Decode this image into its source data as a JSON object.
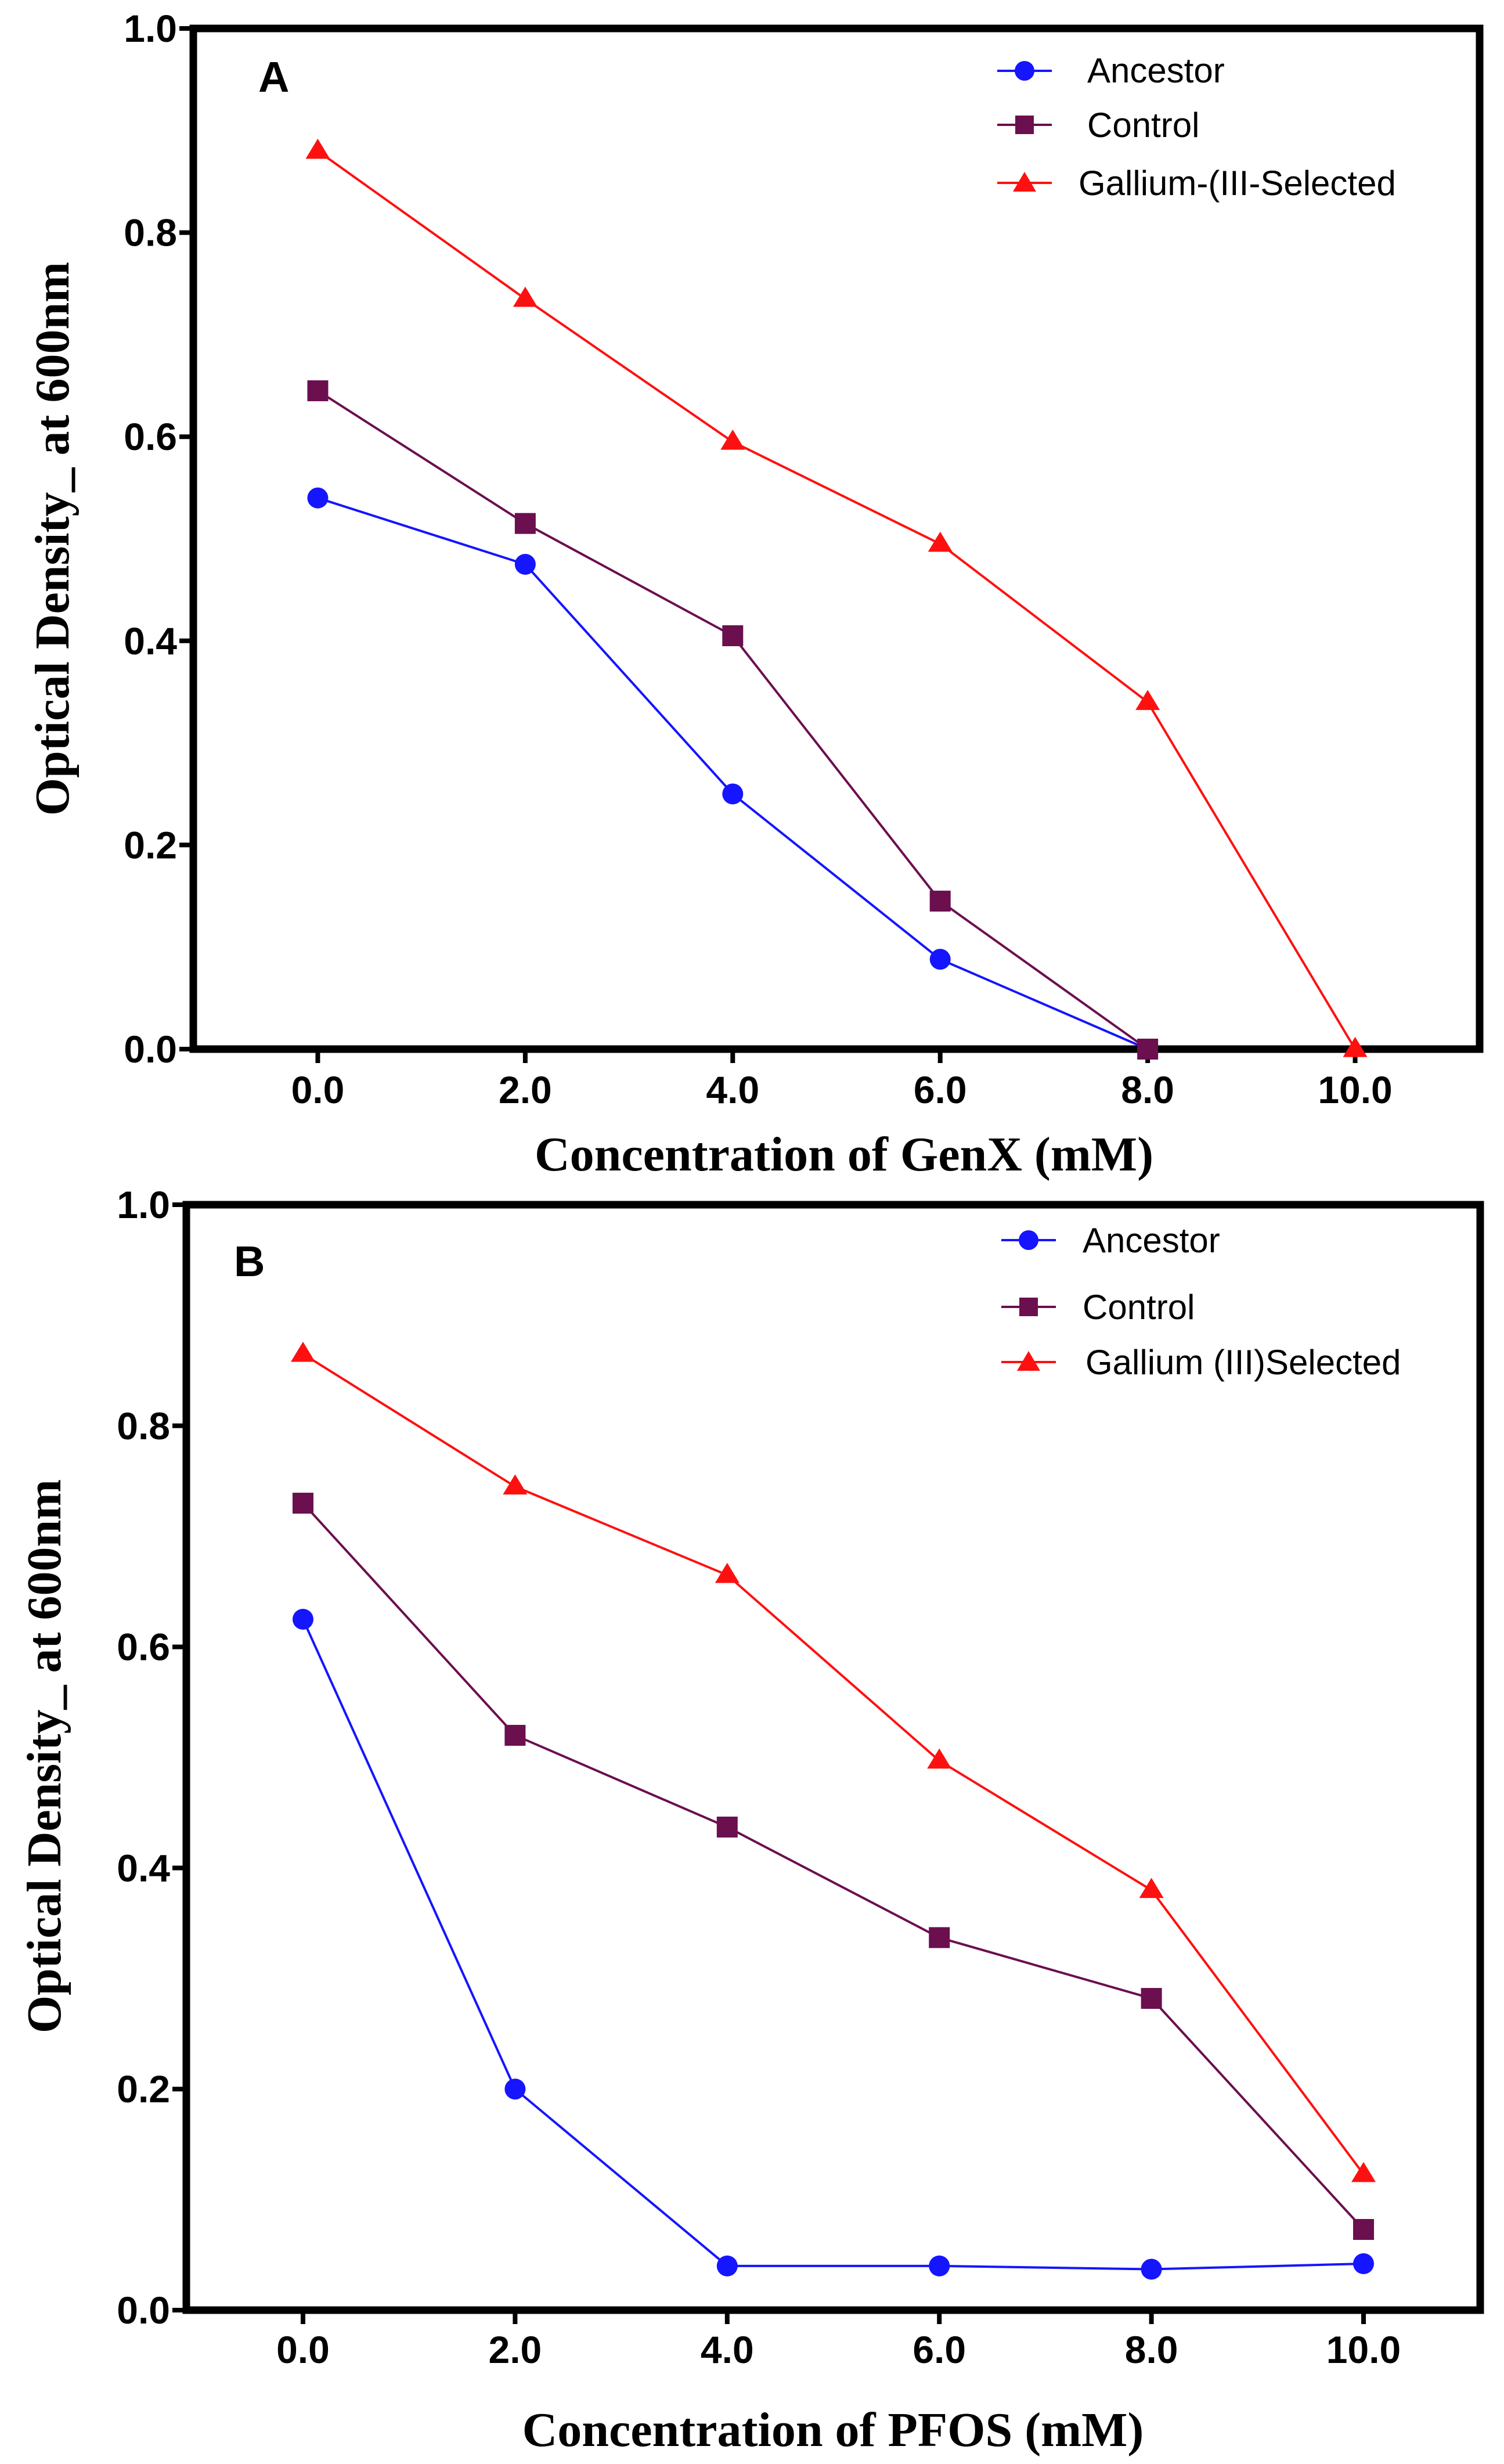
{
  "chart_data": [
    {
      "type": "line",
      "panel_label": "A",
      "title": "",
      "xlabel": "Concentration of GenX (mM)",
      "ylabel": "Optical Density_ at 600nm",
      "x": [
        0,
        2,
        4,
        6,
        8,
        10
      ],
      "x_tick_labels": [
        "0.0",
        "2.0",
        "4.0",
        "6.0",
        "8.0",
        "10.0"
      ],
      "xlim": [
        -1.2,
        11.2
      ],
      "ylim": [
        0,
        1.0
      ],
      "y_ticks": [
        0.0,
        0.2,
        0.4,
        0.6,
        0.8,
        1.0
      ],
      "y_tick_labels": [
        "0.0",
        "0.2",
        "0.4",
        "0.6",
        "0.8",
        "1.0"
      ],
      "grid": false,
      "legend_position": "top-right",
      "series": [
        {
          "name": "Ancestor",
          "color": "#1515ff",
          "marker": "circle",
          "x": [
            0,
            2,
            4,
            6,
            8
          ],
          "values": [
            0.54,
            0.475,
            0.25,
            0.088,
            0.0
          ]
        },
        {
          "name": "Control",
          "color": "#6b0f4f",
          "marker": "square",
          "x": [
            0,
            2,
            4,
            6,
            8
          ],
          "values": [
            0.645,
            0.515,
            0.405,
            0.145,
            0.0
          ]
        },
        {
          "name": "Gallium-(III-Selected",
          "color": "#ff1010",
          "marker": "triangle",
          "x": [
            0,
            2,
            4,
            6,
            8,
            10
          ],
          "values": [
            0.88,
            0.735,
            0.595,
            0.495,
            0.34,
            0.0
          ]
        }
      ]
    },
    {
      "type": "line",
      "panel_label": "B",
      "title": "",
      "xlabel": "Concentration of PFOS (mM)",
      "ylabel": "Optical Density_ at 600nm",
      "x": [
        0,
        2,
        4,
        6,
        8,
        10
      ],
      "x_tick_labels": [
        "0.0",
        "2.0",
        "4.0",
        "6.0",
        "8.0",
        "10.0"
      ],
      "xlim": [
        -1.1,
        11.1
      ],
      "ylim": [
        0,
        1.0
      ],
      "y_ticks": [
        0.0,
        0.2,
        0.4,
        0.6,
        0.8,
        1.0
      ],
      "y_tick_labels": [
        "0.0",
        "0.2",
        "0.4",
        "0.6",
        "0.8",
        "1.0"
      ],
      "grid": false,
      "legend_position": "top-right",
      "series": [
        {
          "name": "Ancestor",
          "color": "#1515ff",
          "marker": "circle",
          "x": [
            0,
            2,
            4,
            6,
            8,
            10
          ],
          "values": [
            0.625,
            0.2,
            0.04,
            0.04,
            0.037,
            0.042
          ]
        },
        {
          "name": "Control",
          "color": "#6b0f4f",
          "marker": "square",
          "x": [
            0,
            2,
            4,
            6,
            8,
            10
          ],
          "values": [
            0.73,
            0.52,
            0.437,
            0.337,
            0.282,
            0.073
          ]
        },
        {
          "name": "Gallium (III)Selected",
          "color": "#ff1010",
          "marker": "triangle",
          "x": [
            0,
            2,
            4,
            6,
            8,
            10
          ],
          "values": [
            0.865,
            0.745,
            0.665,
            0.497,
            0.38,
            0.123
          ]
        }
      ]
    }
  ]
}
